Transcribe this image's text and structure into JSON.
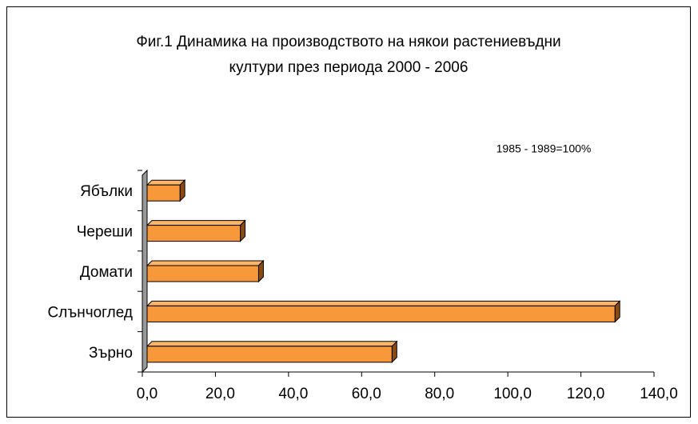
{
  "chart_data": {
    "type": "bar3d_horizontal",
    "title": [
      "Фиг.1 Динамика на производството на някои растениевъдни",
      "култури през периода 2000 - 2006"
    ],
    "annotation": "1985 - 1989=100%",
    "categories": [
      "Зърно",
      "Слънчоглед",
      "Домати",
      "Череши",
      "Ябълки"
    ],
    "values": [
      67,
      128,
      30.5,
      25.5,
      9
    ],
    "color": "#f7993a",
    "xlim": [
      0,
      140
    ],
    "xticks": [
      {
        "value": 0,
        "label": "0,0"
      },
      {
        "value": 20,
        "label": "20,0"
      },
      {
        "value": 40,
        "label": "40,0"
      },
      {
        "value": 60,
        "label": "60,0"
      },
      {
        "value": 80,
        "label": "80,0"
      },
      {
        "value": 100,
        "label": "100,0"
      },
      {
        "value": 120,
        "label": "120,0"
      },
      {
        "value": 140,
        "label": "140,0"
      }
    ]
  }
}
